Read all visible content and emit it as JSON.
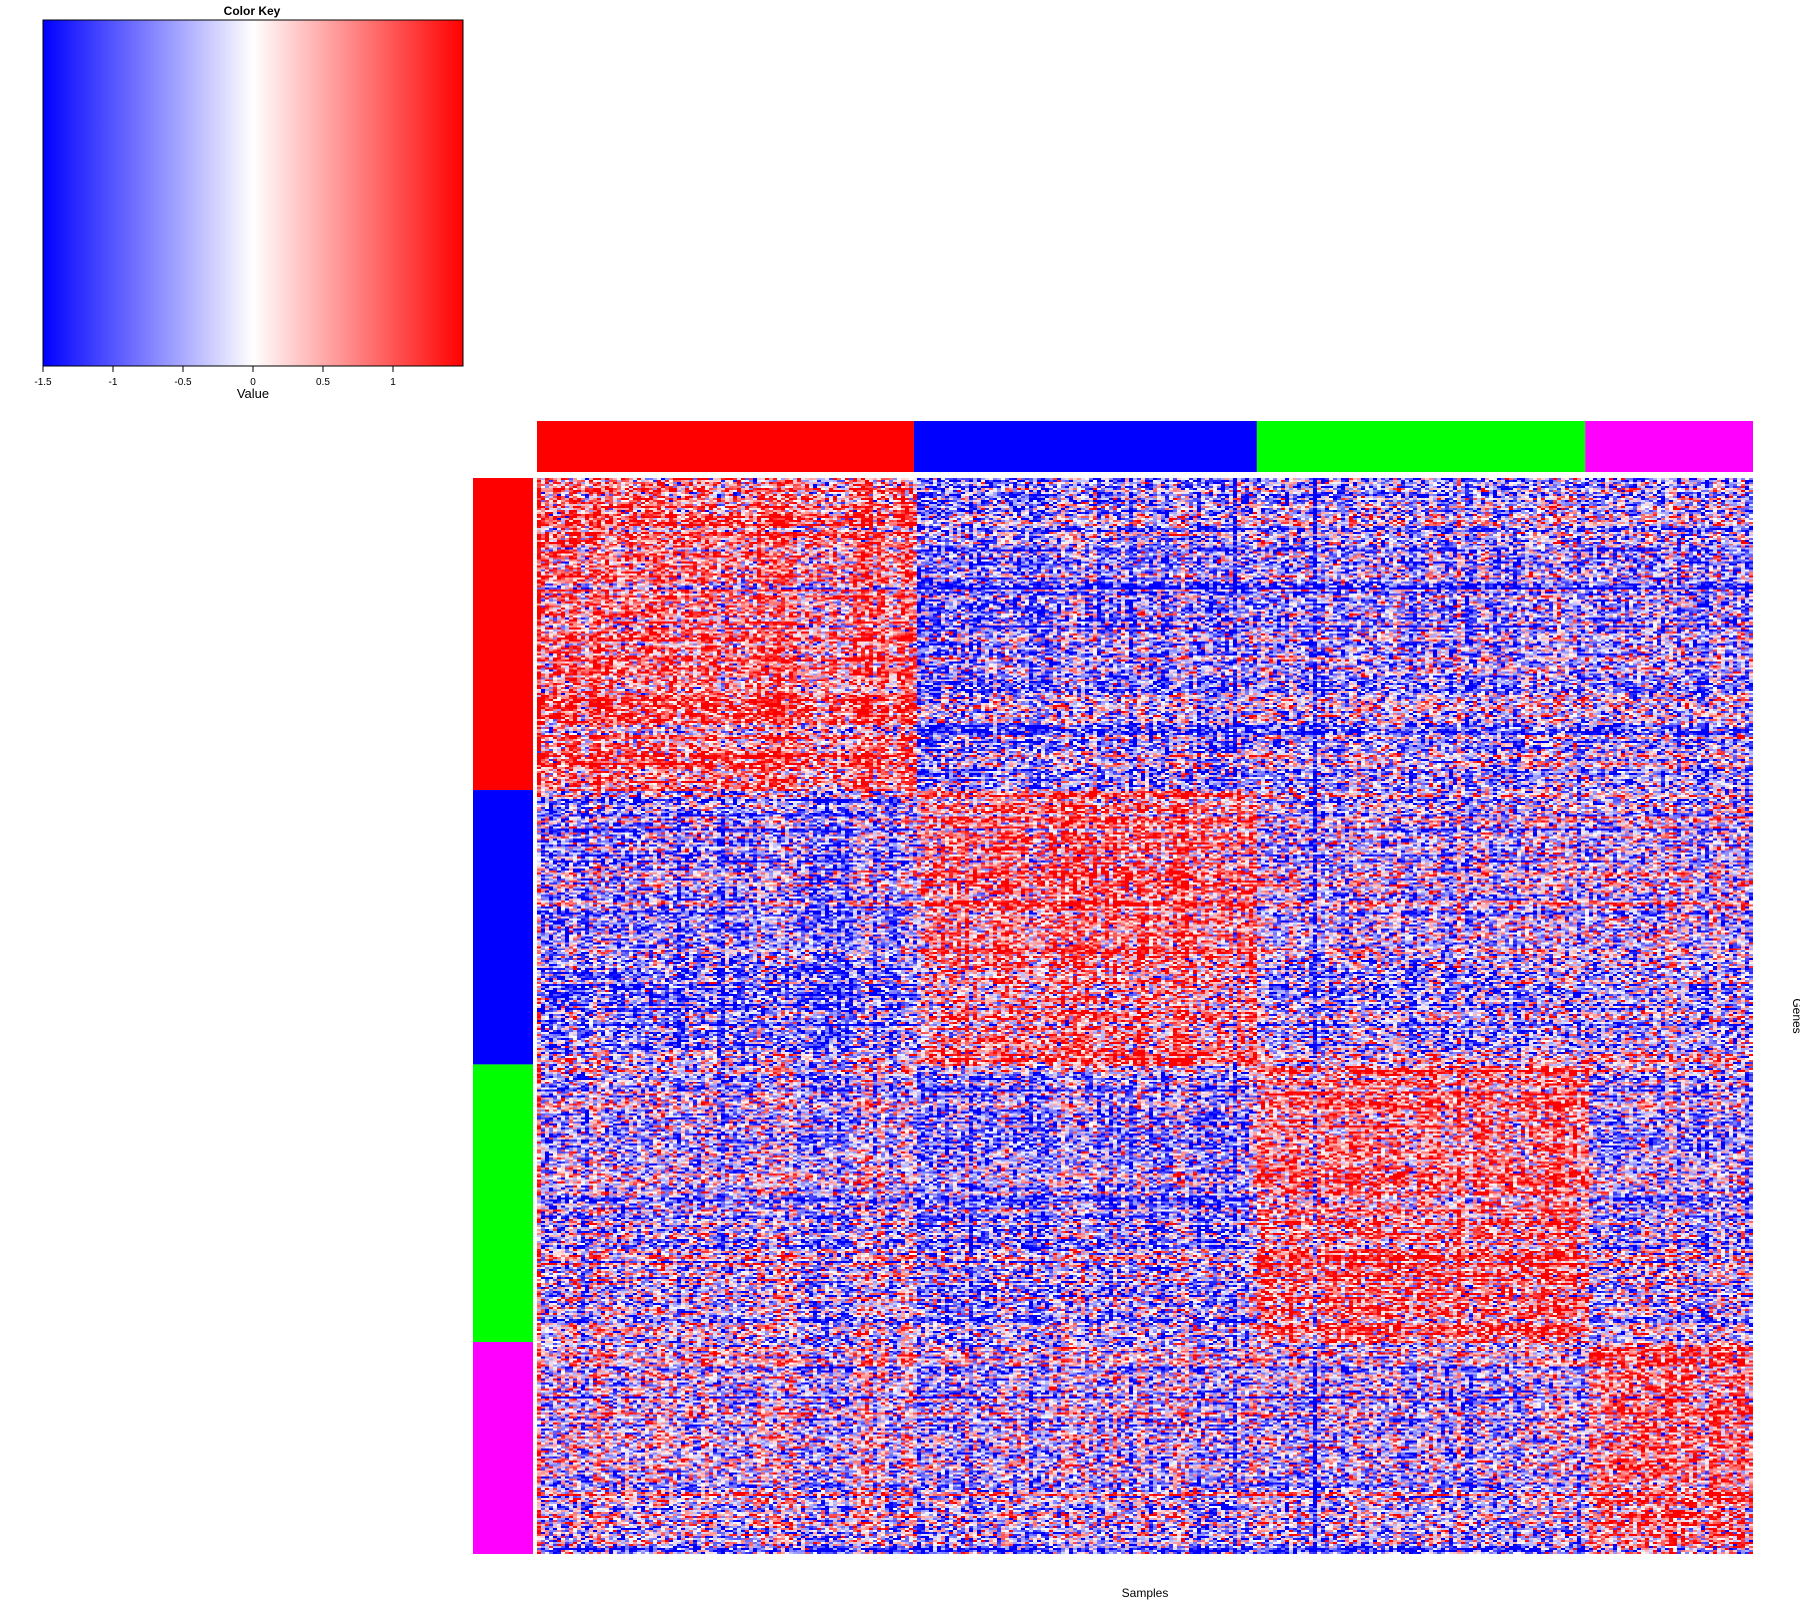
{
  "chart_data": {
    "type": "heatmap",
    "xlabel": "Samples",
    "ylabel": "Genes",
    "grid": false,
    "color_key": {
      "title": "Color Key",
      "label": "Value",
      "range": [
        -1.5,
        1.5
      ],
      "ticks": [
        "-1.5",
        "-1",
        "-0.5",
        "0",
        "0.5",
        "1"
      ],
      "tick_values": [
        -1.5,
        -1,
        -0.5,
        0,
        0.5,
        1
      ],
      "colors": {
        "low": "#0000ff",
        "mid": "#ffffff",
        "high": "#ff0000"
      },
      "placement": "top-left"
    },
    "column_groups": [
      {
        "color": "#ff0000",
        "fraction": 0.31
      },
      {
        "color": "#0000ff",
        "fraction": 0.282
      },
      {
        "color": "#00ff00",
        "fraction": 0.27
      },
      {
        "color": "#ff00ff",
        "fraction": 0.138
      }
    ],
    "row_groups": [
      {
        "color": "#ff0000",
        "fraction": 0.29
      },
      {
        "color": "#0000ff",
        "fraction": 0.255
      },
      {
        "color": "#00ff00",
        "fraction": 0.258
      },
      {
        "color": "#ff00ff",
        "fraction": 0.197
      }
    ],
    "block_means": [
      [
        0.8,
        -0.6,
        -0.5,
        -0.4
      ],
      [
        -0.7,
        0.8,
        -0.4,
        -0.2
      ],
      [
        -0.3,
        -0.5,
        0.8,
        -0.3
      ],
      [
        -0.2,
        -0.3,
        -0.4,
        0.8
      ]
    ]
  }
}
